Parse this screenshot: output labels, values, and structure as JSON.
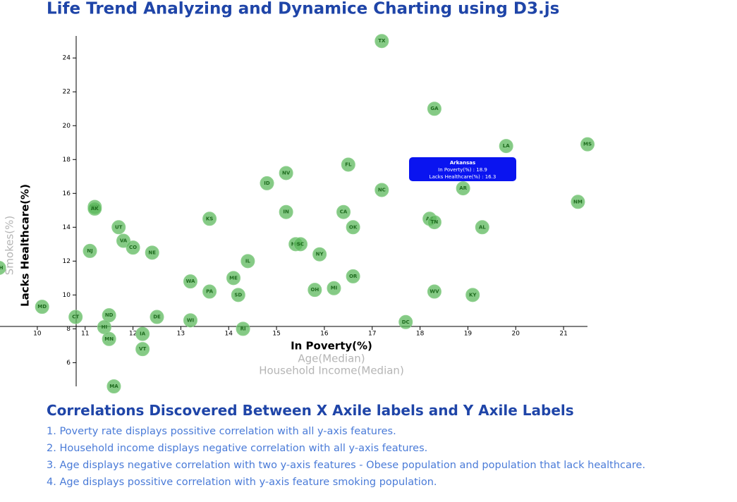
{
  "chart_data": {
    "type": "scatter",
    "title": "Life Trend Analyzing and Dynamice Charting using D3.js",
    "labels": [
      "TX",
      "GA",
      "LA",
      "MS",
      "AR",
      "NM",
      "NC",
      "FL",
      "NV",
      "ID",
      "KS",
      "IN",
      "CA",
      "OK",
      "AZ",
      "TN",
      "AL",
      "WY",
      "AK",
      "UT",
      "VA",
      "CO",
      "NJ",
      "NE",
      "MO",
      "SC",
      "NY",
      "IL",
      "ME",
      "OR",
      "WA",
      "PA",
      "SD",
      "OH",
      "MI",
      "WV",
      "KY",
      "MD",
      "CT",
      "ND",
      "DE",
      "WI",
      "DC",
      "HI",
      "IA",
      "MN",
      "RI",
      "VT",
      "MA",
      "NH"
    ],
    "x": [
      17.2,
      18.3,
      19.8,
      21.5,
      18.9,
      21.3,
      17.2,
      16.5,
      15.2,
      14.8,
      13.6,
      15.2,
      16.4,
      16.6,
      18.2,
      18.3,
      19.3,
      11.2,
      11.2,
      11.7,
      11.8,
      12.0,
      11.1,
      12.4,
      15.4,
      15.5,
      15.9,
      14.4,
      14.1,
      16.6,
      13.2,
      13.6,
      14.2,
      15.8,
      16.2,
      18.3,
      19.1,
      10.1,
      10.8,
      11.5,
      12.5,
      13.2,
      17.7,
      11.4,
      12.2,
      11.5,
      14.3,
      12.2,
      11.6,
      9.2
    ],
    "values": [
      25.0,
      21.0,
      18.8,
      18.9,
      16.3,
      15.5,
      16.2,
      17.7,
      17.2,
      16.6,
      14.5,
      14.9,
      14.9,
      14.0,
      14.5,
      14.3,
      14.0,
      15.2,
      15.1,
      14.0,
      13.2,
      12.8,
      12.6,
      12.5,
      13.0,
      13.0,
      12.4,
      12.0,
      11.0,
      11.1,
      10.8,
      10.2,
      10.0,
      10.3,
      10.4,
      10.2,
      10.0,
      9.3,
      8.7,
      8.8,
      8.7,
      8.5,
      8.4,
      8.1,
      7.7,
      7.4,
      8.0,
      6.8,
      4.6,
      11.6
    ],
    "color": "#5cb85c",
    "xlim": [
      9.22,
      21.5
    ],
    "ylim": [
      4.6,
      25.3
    ],
    "xticks": [
      10,
      11,
      12,
      13,
      14,
      15,
      16,
      17,
      18,
      19,
      20,
      21
    ],
    "yticks": [
      6,
      8,
      10,
      12,
      14,
      16,
      18,
      20,
      22,
      24
    ],
    "xlabel": "In Poverty(%)",
    "xlabels_inactive": [
      "Age(Median)",
      "Household Income(Median)"
    ],
    "ylabel": "Lacks Healthcare(%)",
    "ylabels_inactive": [
      "Smokes(%)"
    ],
    "tooltip": {
      "title": "Arkansas",
      "lines": [
        "In Poverty(%) : 18.9",
        "Lacks Healthcare(%) : 16.3"
      ]
    }
  },
  "findings": {
    "heading": "Correlations Discovered Between X Axile labels and Y Axile Labels",
    "items": [
      "1. Poverty rate displays possitive correlation with all y-axis features.",
      "2. Household income displays negative correlation with all y-axis features.",
      "3. Age displays negative correlation with two y-axis features - Obese population and population that lack healthcare.",
      "4. Age displays possitive correlation with y-axis feature smoking population."
    ]
  }
}
